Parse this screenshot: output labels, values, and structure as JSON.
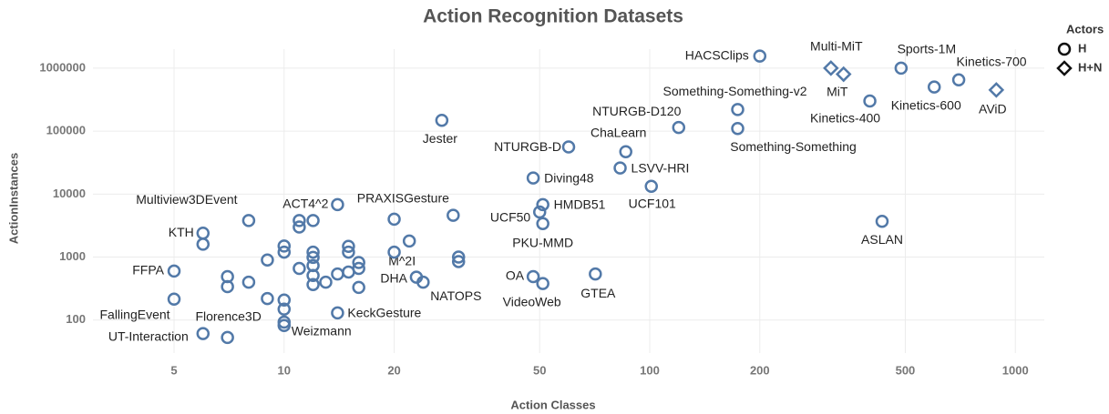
{
  "chart_data": {
    "type": "scatter",
    "title": "Action Recognition Datasets",
    "xlabel": "Action Classes",
    "ylabel": "ActionInstances",
    "xscale": "log",
    "yscale": "log",
    "xlim": [
      3,
      1200
    ],
    "ylim": [
      30,
      2000000
    ],
    "xticks": [
      5,
      10,
      20,
      50,
      100,
      200,
      500,
      1000
    ],
    "yticks": [
      100,
      1000,
      10000,
      100000,
      1000000
    ],
    "grid": true,
    "legend_title": "Actors",
    "legend": "top-right",
    "series": [
      {
        "name": "H",
        "color": "#5279a8",
        "marker": "circle",
        "x": [
          200,
          487,
          700,
          600,
          400,
          174,
          174,
          120,
          27,
          60,
          86,
          83,
          48,
          101,
          51,
          50,
          51,
          432,
          29,
          14,
          8,
          6,
          22,
          23,
          24,
          48,
          51,
          71,
          5,
          5,
          14,
          6,
          7,
          10,
          20,
          12,
          11,
          11,
          6,
          20,
          30,
          30,
          10,
          10,
          12,
          12,
          12,
          12,
          12,
          15,
          15,
          16,
          16,
          16,
          9,
          11,
          13,
          14,
          15,
          7,
          7,
          8,
          9,
          10,
          10,
          10
        ],
        "values": [
          1550000,
          1000000,
          650000,
          500000,
          300000,
          220000,
          110000,
          114000,
          148000,
          56000,
          47000,
          26000,
          18000,
          13300,
          6800,
          5200,
          3400,
          3700,
          4600,
          6800,
          3800,
          2400,
          1800,
          480,
          400,
          490,
          380,
          540,
          600,
          215,
          130,
          61,
          53,
          82,
          4000,
          3800,
          3800,
          3000,
          1600,
          1200,
          1000,
          850,
          1500,
          1200,
          1200,
          990,
          735,
          510,
          366,
          1480,
          1200,
          820,
          660,
          330,
          900,
          660,
          400,
          540,
          580,
          490,
          340,
          400,
          220,
          208,
          149,
          93
        ],
        "labels": [
          "HACSClips",
          "Sports-1M",
          "Kinetics-700",
          "Kinetics-600",
          "Kinetics-400",
          "Something-Something-v2",
          "Something-Something",
          "NTURGB-D120",
          "Jester",
          "NTURGB-D",
          "ChaLearn",
          "LSVV-HRI",
          "Diving48",
          "UCF101",
          "HMDB51",
          "UCF50",
          "PKU-MMD",
          "ASLAN",
          "PRAXISGesture",
          "ACT4^2",
          "Multiview3DEvent",
          "KTH",
          "M^2I",
          "DHA",
          "NATOPS",
          "OA",
          "VideoWeb",
          "GTEA",
          "FFPA",
          "FallingEvent",
          "KeckGesture",
          "UT-Interaction",
          "Florence3D",
          "Weizmann",
          null,
          null,
          null,
          null,
          null,
          null,
          null,
          null,
          null,
          null,
          null,
          null,
          null,
          null,
          null,
          null,
          null,
          null,
          null,
          null,
          null,
          null,
          null,
          null,
          null,
          null,
          null,
          null,
          null,
          null,
          null,
          null
        ]
      },
      {
        "name": "H+N",
        "color": "#5279a8",
        "marker": "diamond",
        "x": [
          313,
          339,
          887
        ],
        "values": [
          1000000,
          800000,
          450000
        ],
        "labels": [
          "Multi-MiT",
          "MiT",
          "AViD"
        ]
      }
    ]
  }
}
